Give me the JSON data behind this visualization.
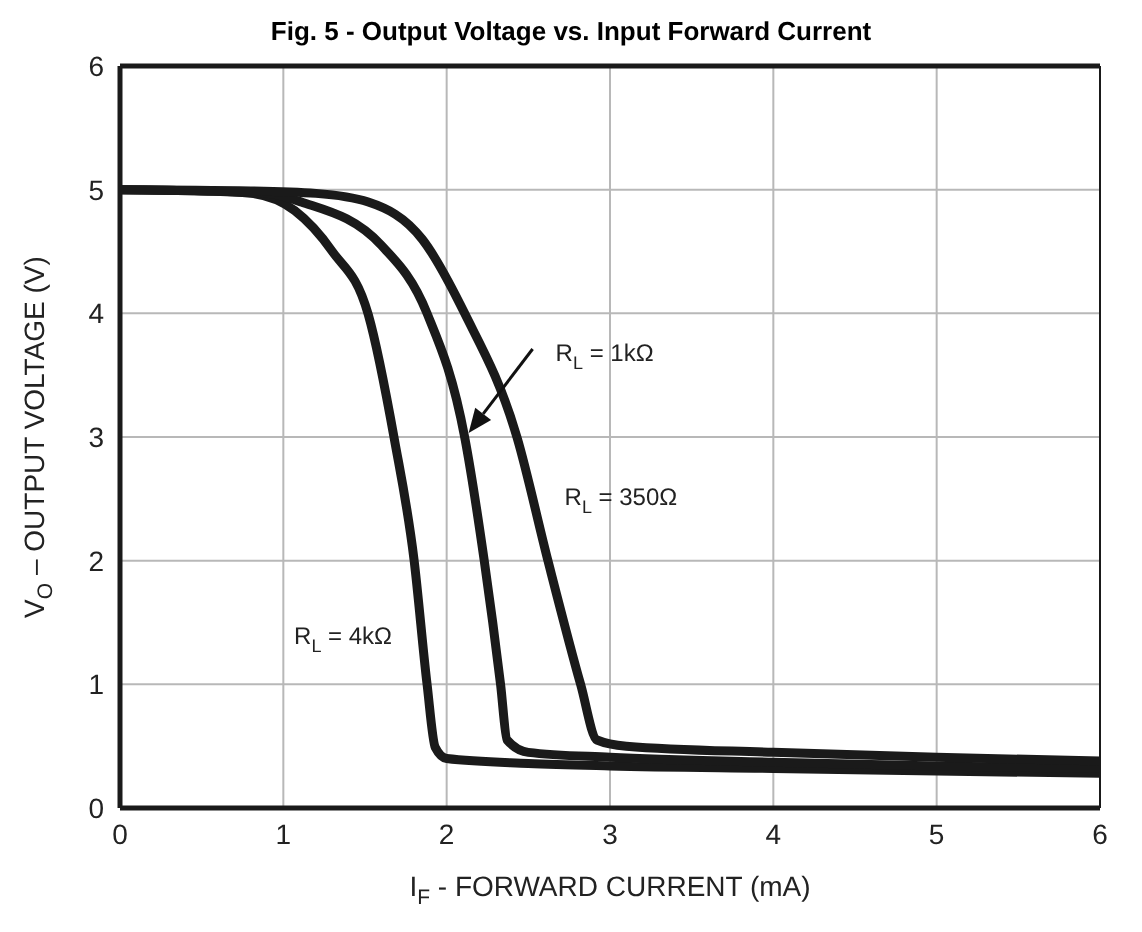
{
  "chart_data": {
    "type": "line",
    "title": "Fig. 5 - Output Voltage vs. Input Forward Current",
    "xlabel": "I$_{F}$ - FORWARD CURRENT (mA)",
    "ylabel": "V$_{O}$ – OUTPUT VOLTAGE (V)",
    "xlim": [
      0,
      6
    ],
    "ylim": [
      0,
      6
    ],
    "xticks": [
      0,
      1,
      2,
      3,
      4,
      5,
      6
    ],
    "yticks": [
      0,
      1,
      2,
      3,
      4,
      5,
      6
    ],
    "grid": true,
    "marker": "none",
    "line_style": "solid",
    "series": [
      {
        "color": "#1a1a1a",
        "x": [
          0,
          0.5,
          0.8,
          1.07,
          1.3,
          1.52,
          1.68,
          1.8,
          1.88,
          1.93,
          2.0,
          2.5,
          3,
          4,
          5,
          6
        ],
        "values": [
          5,
          4.99,
          4.97,
          4.83,
          4.5,
          3.99,
          2.98,
          2.01,
          1.0,
          0.49,
          0.4,
          0.36,
          0.34,
          0.32,
          0.3,
          0.28
        ]
      },
      {
        "color": "#1a1a1a",
        "x": [
          0,
          0.5,
          0.9,
          1.11,
          1.6,
          1.88,
          2.11,
          2.23,
          2.33,
          2.37,
          2.5,
          3,
          4,
          5,
          6
        ],
        "values": [
          5,
          4.99,
          4.97,
          4.9,
          4.55,
          4.0,
          3.0,
          2.0,
          1.0,
          0.55,
          0.45,
          0.41,
          0.37,
          0.34,
          0.32
        ]
      },
      {
        "color": "#1a1a1a",
        "x": [
          0,
          0.8,
          1.2,
          1.52,
          1.85,
          2.11,
          2.43,
          2.62,
          2.82,
          2.92,
          3.1,
          4,
          5,
          6
        ],
        "values": [
          5,
          4.99,
          4.97,
          4.9,
          4.6,
          4.0,
          3.0,
          2.0,
          1.0,
          0.55,
          0.5,
          0.45,
          0.41,
          0.38
        ]
      }
    ],
    "annotations": [
      "R$_{L}$ = 4kΩ",
      "R$_{L}$ = 1kΩ",
      "R$_{L}$ = 350Ω"
    ]
  }
}
